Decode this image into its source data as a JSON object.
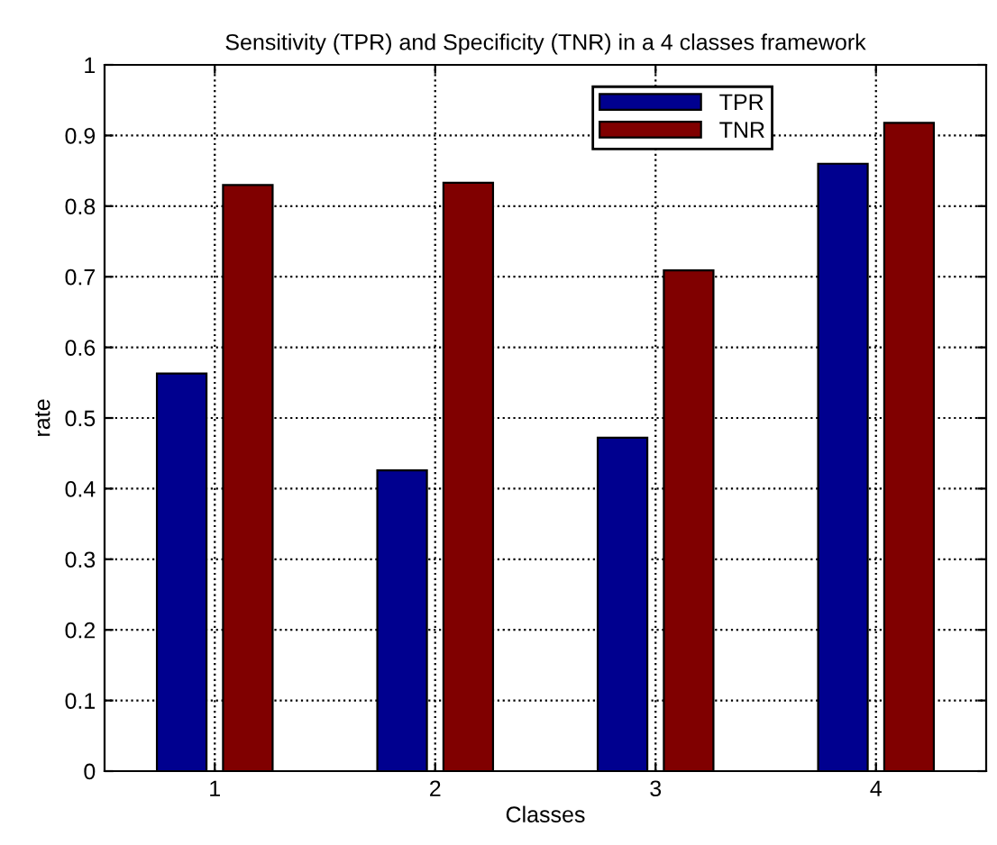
{
  "chart_data": {
    "type": "bar",
    "title": "Sensitivity (TPR) and Specificity (TNR) in a 4 classes framework",
    "xlabel": "Classes",
    "ylabel": "rate",
    "categories": [
      "1",
      "2",
      "3",
      "4"
    ],
    "series": [
      {
        "name": "TPR",
        "color": "#00008f",
        "values": [
          0.563,
          0.426,
          0.472,
          0.86
        ]
      },
      {
        "name": "TNR",
        "color": "#800000",
        "values": [
          0.83,
          0.833,
          0.709,
          0.918
        ]
      }
    ],
    "ylim": [
      0,
      1
    ],
    "yticks": [
      0,
      0.1,
      0.2,
      0.3,
      0.4,
      0.5,
      0.6,
      0.7,
      0.8,
      0.9,
      1
    ],
    "grid": true,
    "line_style": "dotted",
    "legend": "top right"
  }
}
